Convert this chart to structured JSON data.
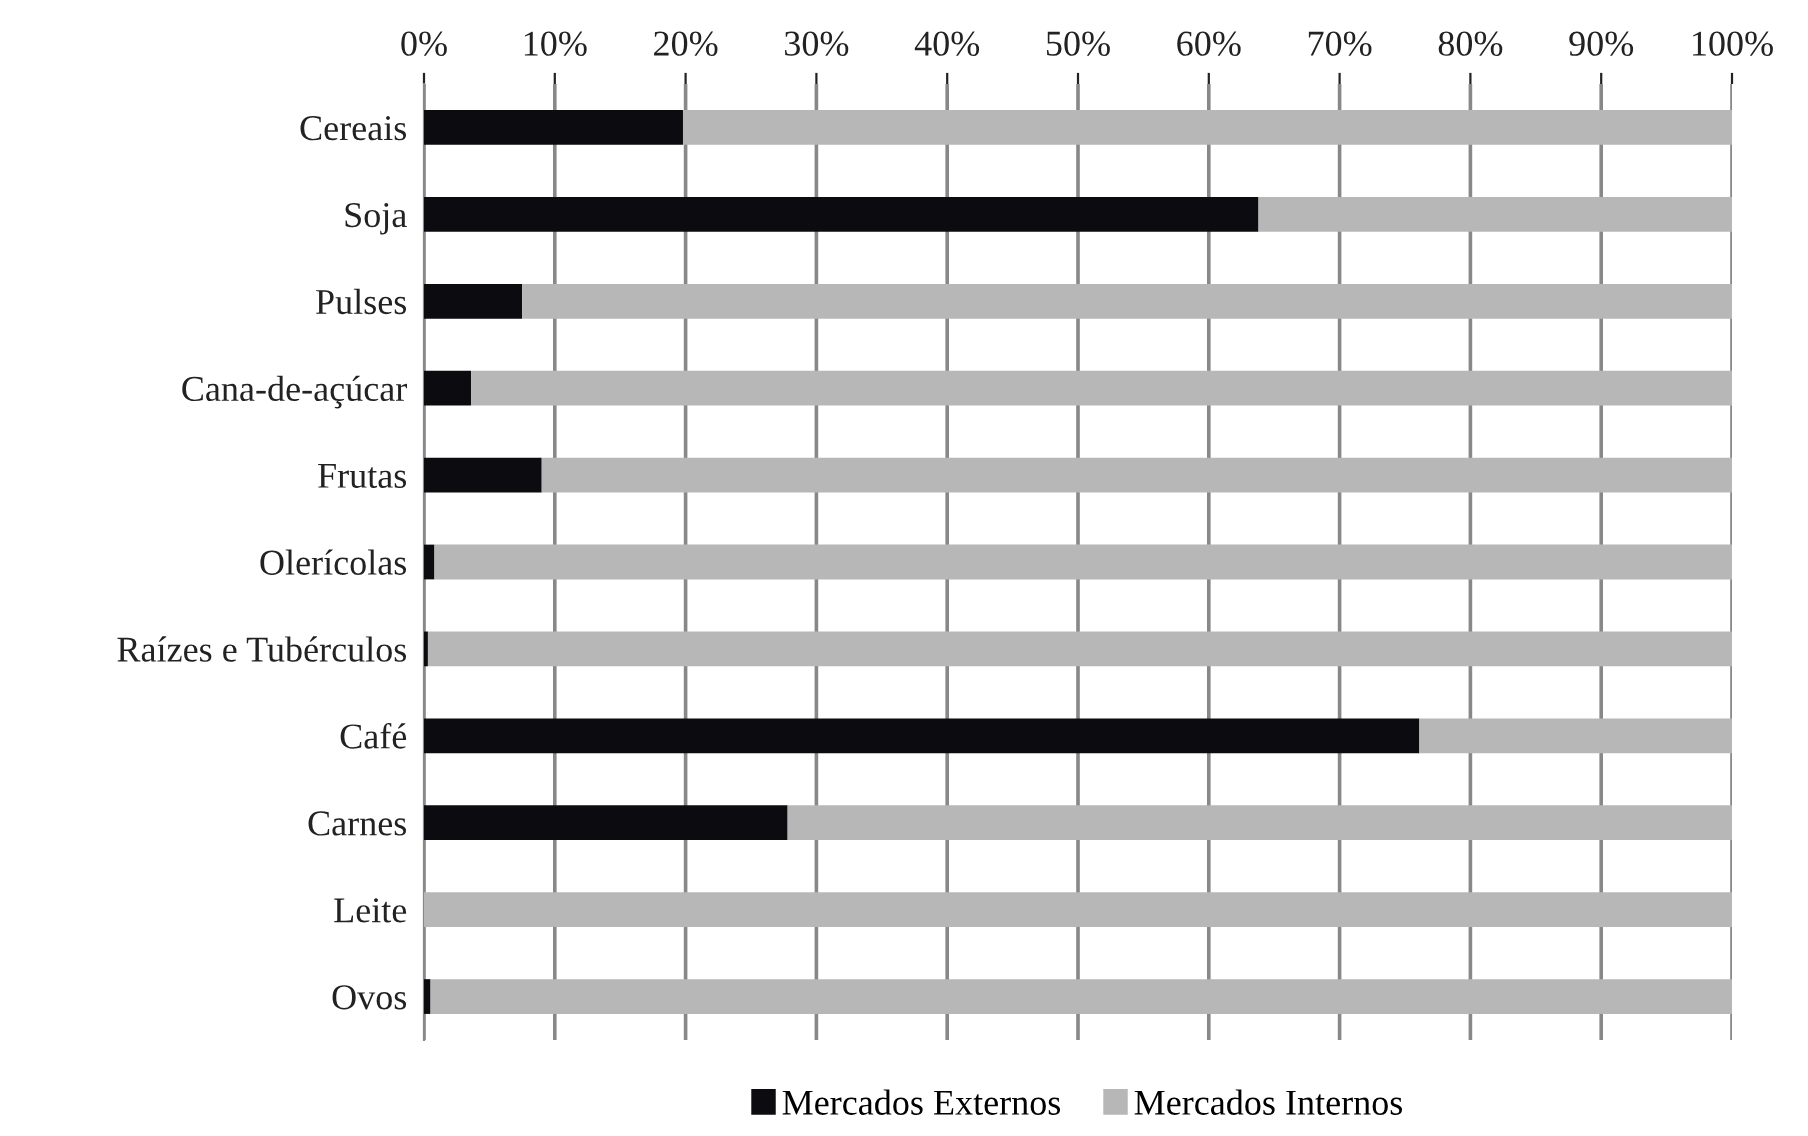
{
  "chart_data": {
    "type": "bar",
    "orientation": "horizontal",
    "stacked": true,
    "categories": [
      "Cereais",
      "Soja",
      "Pulses",
      "Cana-de-açúcar",
      "Frutas",
      "Olerícolas",
      "Raízes e Tubérculos",
      "Café",
      "Carnes",
      "Leite",
      "Ovos"
    ],
    "series": [
      {
        "name": "Mercados Externos",
        "color": "#0c0b10",
        "values": [
          19.8,
          63.8,
          7.5,
          3.6,
          9.0,
          0.8,
          0.3,
          76.1,
          27.8,
          0,
          0.5
        ]
      },
      {
        "name": "Mercados Internos",
        "color": "#b6b7b6",
        "values": [
          80.2,
          36.2,
          92.5,
          96.4,
          91.0,
          99.2,
          99.7,
          23.9,
          72.2,
          100,
          99.5
        ]
      }
    ],
    "xlim": [
      0,
      100
    ],
    "xticks": [
      {
        "value": 0,
        "label": "0%"
      },
      {
        "value": 10,
        "label": "10%"
      },
      {
        "value": 20,
        "label": "20%"
      },
      {
        "value": 30,
        "label": "30%"
      },
      {
        "value": 40,
        "label": "40%"
      },
      {
        "value": 50,
        "label": "50%"
      },
      {
        "value": 60,
        "label": "60%"
      },
      {
        "value": 70,
        "label": "70%"
      },
      {
        "value": 80,
        "label": "80%"
      },
      {
        "value": 90,
        "label": "90%"
      },
      {
        "value": 100,
        "label": "100%"
      }
    ],
    "grid": "x",
    "legend": "bottom"
  }
}
